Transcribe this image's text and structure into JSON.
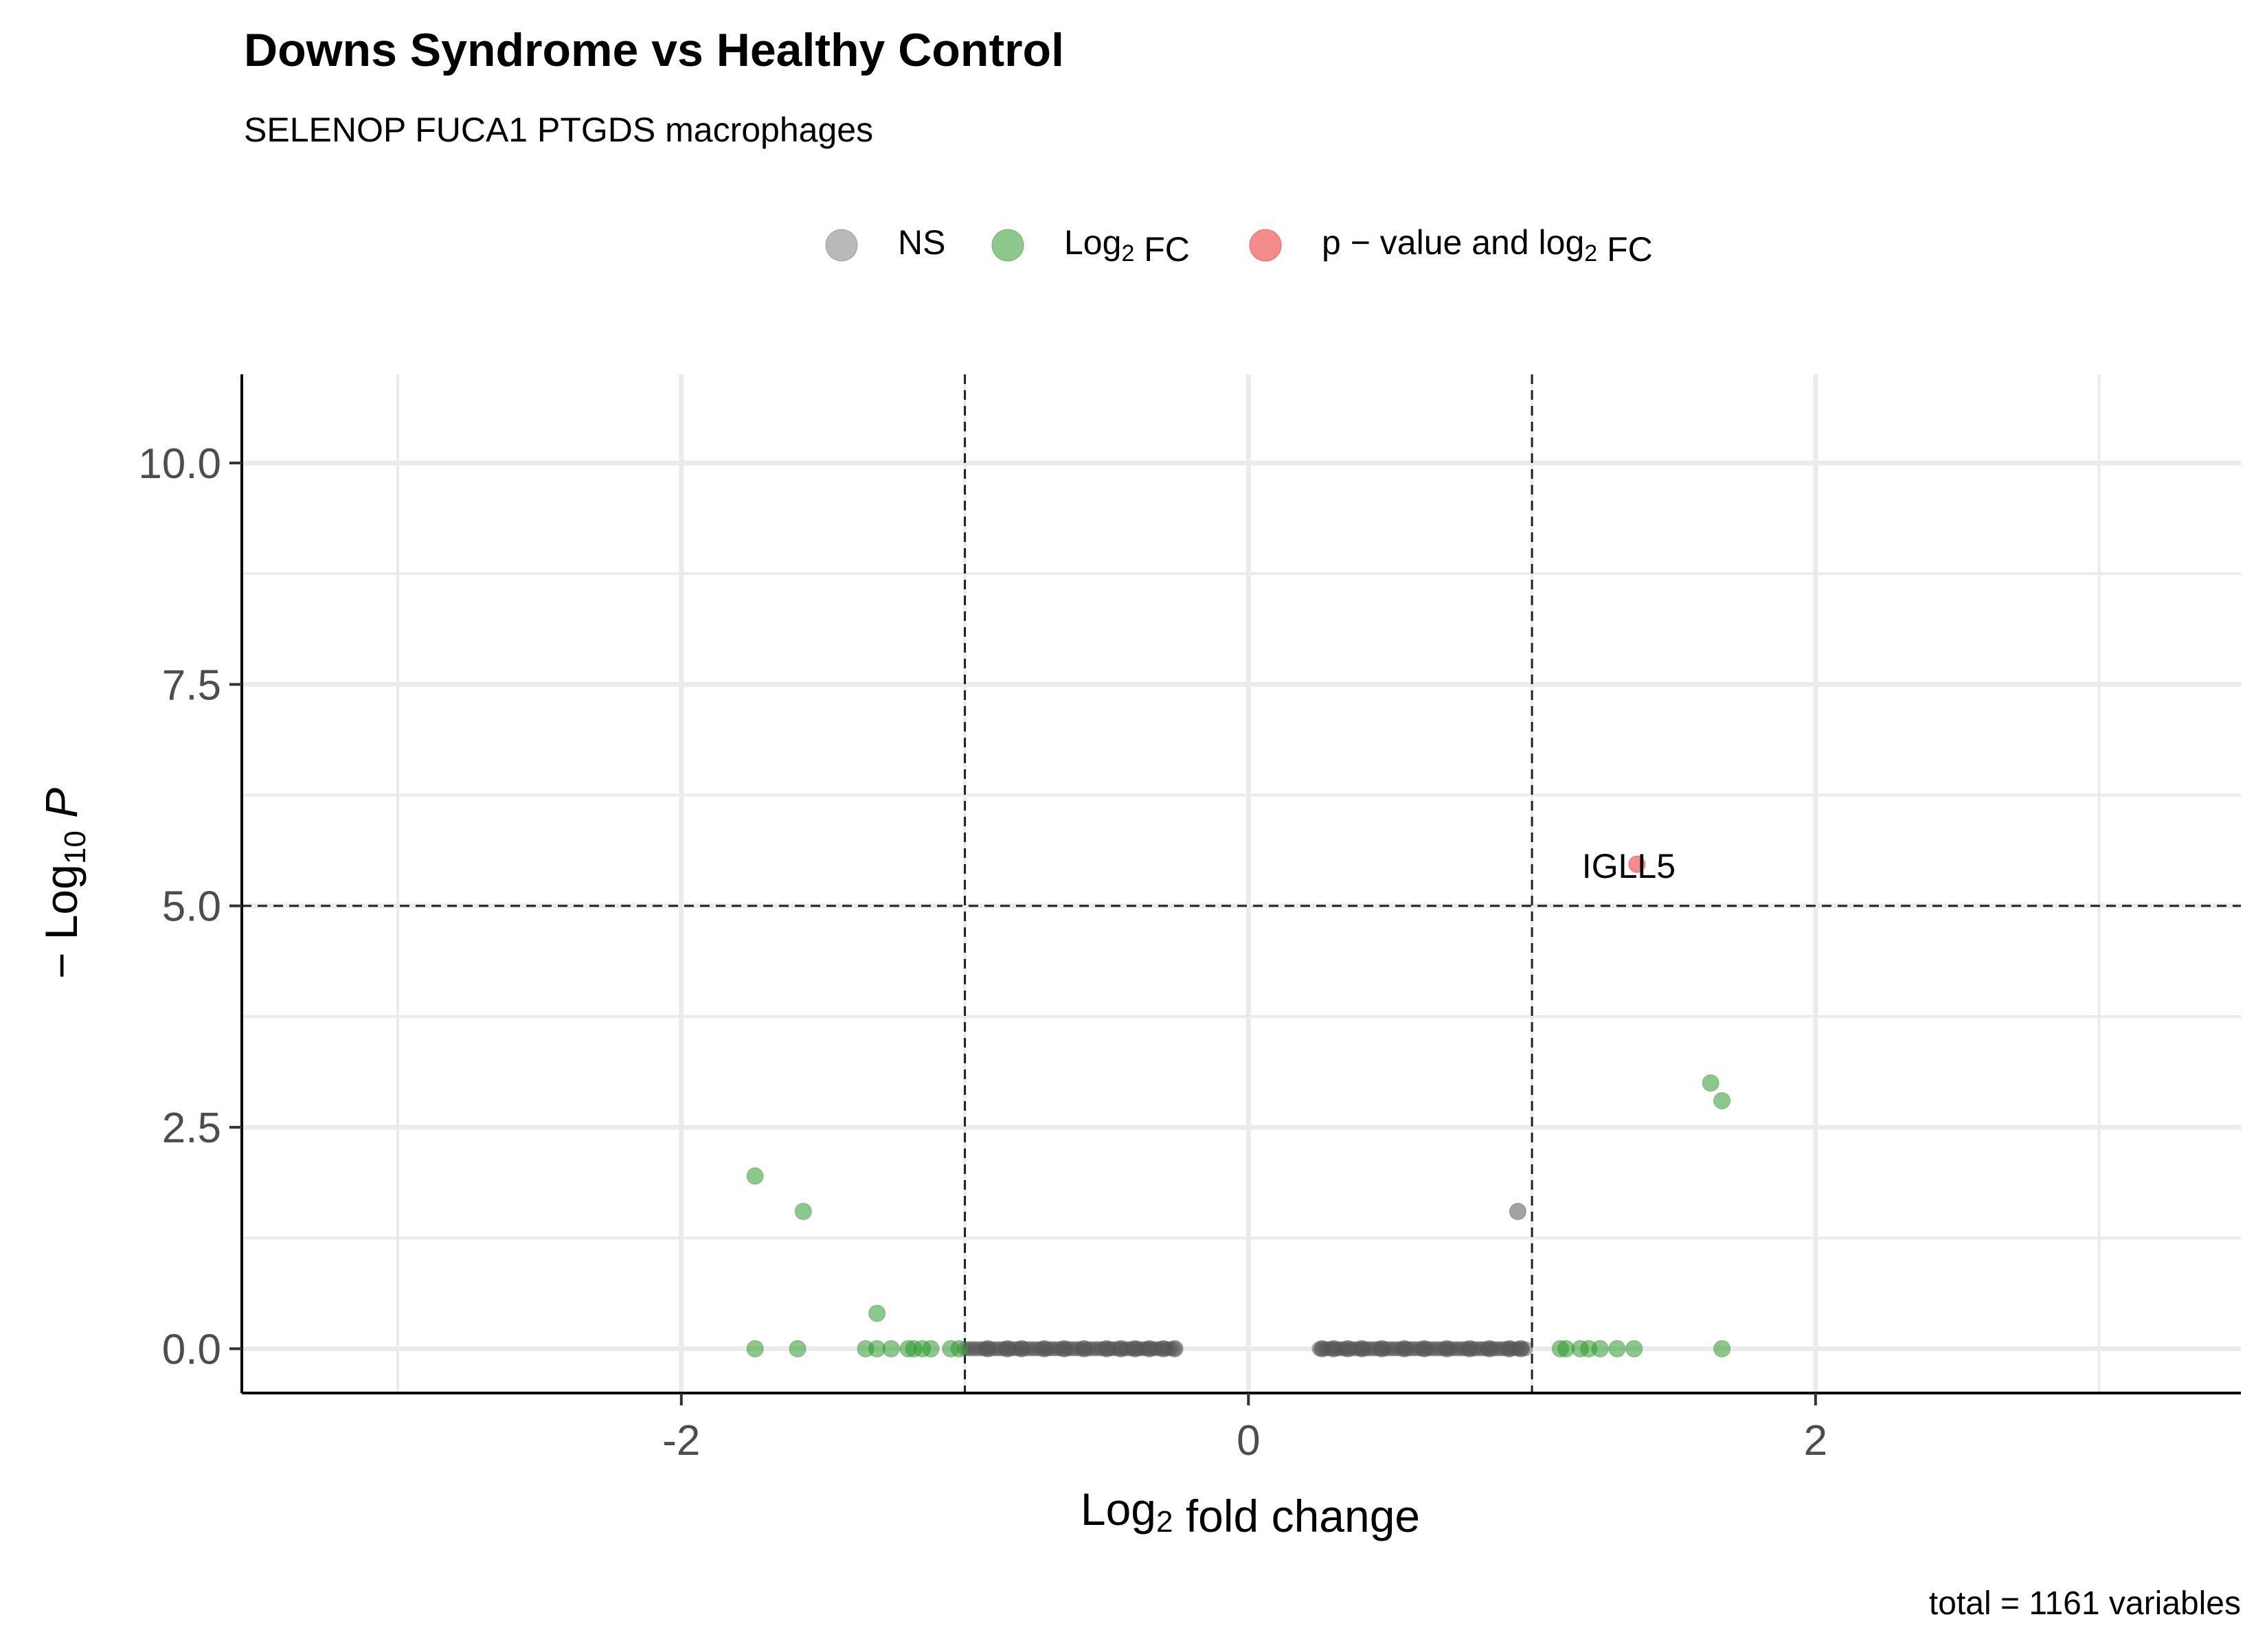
{
  "chart_data": {
    "type": "scatter",
    "title": "Downs Syndrome vs Healthy Control",
    "subtitle": "SELENOP FUCA1 PTGDS macrophages",
    "xlabel": {
      "main": "Log",
      "sub": "2",
      "tail": " fold change"
    },
    "ylabel": {
      "pre": "− Log",
      "sub": "10",
      "tail": " P"
    },
    "caption": "total = 1161 variables",
    "xlim": [
      -3.55,
      3.5
    ],
    "ylim": [
      -0.5,
      11
    ],
    "x_ticks": [
      -2,
      0,
      2
    ],
    "x_tick_labels": [
      "-2",
      "0",
      "2"
    ],
    "y_ticks": [
      0,
      2.5,
      5,
      7.5,
      10
    ],
    "y_tick_labels": [
      "0.0",
      "2.5",
      "5.0",
      "7.5",
      "10.0"
    ],
    "x_minor_grid": [
      -3,
      -1,
      1,
      3
    ],
    "y_minor_grid": [
      1.25,
      3.75,
      6.25,
      8.75
    ],
    "vlines": [
      -1,
      1
    ],
    "hlines": [
      5
    ],
    "grid": true,
    "legend": {
      "position": "top",
      "entries": [
        {
          "key": "NS",
          "parts": [
            [
              "NS",
              ""
            ]
          ],
          "color": "#7f7f7f"
        },
        {
          "key": "Log2FC",
          "parts": [
            [
              "Log",
              ""
            ],
            [
              "2",
              "sub"
            ],
            [
              " FC",
              ""
            ]
          ],
          "color": "#2e9a2e"
        },
        {
          "key": "pval_log2FC",
          "parts": [
            [
              "p − value and log",
              ""
            ],
            [
              "2",
              "sub"
            ],
            [
              " FC",
              ""
            ]
          ],
          "color": "#ee2c2c"
        }
      ]
    },
    "colors": {
      "NS": "#555555",
      "Log2FC": "#2e9a2e",
      "pval_log2FC": "#ee2c2c"
    },
    "ns_cluster_ranges": [
      [
        -1.0,
        -0.25
      ],
      [
        0.25,
        0.98
      ]
    ],
    "series": [
      {
        "name": "NS",
        "points": [
          [
            0.95,
            1.55
          ],
          [
            -0.92,
            0
          ],
          [
            -0.85,
            0
          ],
          [
            -0.8,
            0
          ],
          [
            -0.72,
            0
          ],
          [
            -0.65,
            0
          ],
          [
            -0.58,
            0
          ],
          [
            -0.5,
            0
          ],
          [
            -0.45,
            0
          ],
          [
            -0.4,
            0
          ],
          [
            -0.35,
            0
          ],
          [
            -0.3,
            0
          ],
          [
            -0.26,
            0
          ],
          [
            0.26,
            0
          ],
          [
            0.3,
            0
          ],
          [
            0.35,
            0
          ],
          [
            0.4,
            0
          ],
          [
            0.47,
            0
          ],
          [
            0.55,
            0
          ],
          [
            0.62,
            0
          ],
          [
            0.7,
            0
          ],
          [
            0.78,
            0
          ],
          [
            0.85,
            0
          ],
          [
            0.92,
            0
          ],
          [
            0.96,
            0
          ]
        ]
      },
      {
        "name": "Log2FC",
        "points": [
          [
            -1.74,
            1.95
          ],
          [
            -1.57,
            1.55
          ],
          [
            -1.31,
            0.4
          ],
          [
            -1.74,
            0
          ],
          [
            -1.59,
            0
          ],
          [
            -1.35,
            0
          ],
          [
            -1.31,
            0
          ],
          [
            -1.26,
            0
          ],
          [
            -1.2,
            0
          ],
          [
            -1.18,
            0
          ],
          [
            -1.15,
            0
          ],
          [
            -1.12,
            0
          ],
          [
            -1.05,
            0
          ],
          [
            -1.02,
            0
          ],
          [
            1.63,
            3.0
          ],
          [
            1.67,
            2.8
          ],
          [
            1.1,
            0
          ],
          [
            1.12,
            0
          ],
          [
            1.17,
            0
          ],
          [
            1.2,
            0
          ],
          [
            1.24,
            0
          ],
          [
            1.3,
            0
          ],
          [
            1.36,
            0
          ],
          [
            1.67,
            0
          ]
        ]
      },
      {
        "name": "pval_log2FC",
        "points": [
          [
            1.37,
            5.47
          ]
        ]
      }
    ],
    "annotations": [
      {
        "label": "IGLL5",
        "x": 1.37,
        "y": 5.47
      }
    ]
  }
}
